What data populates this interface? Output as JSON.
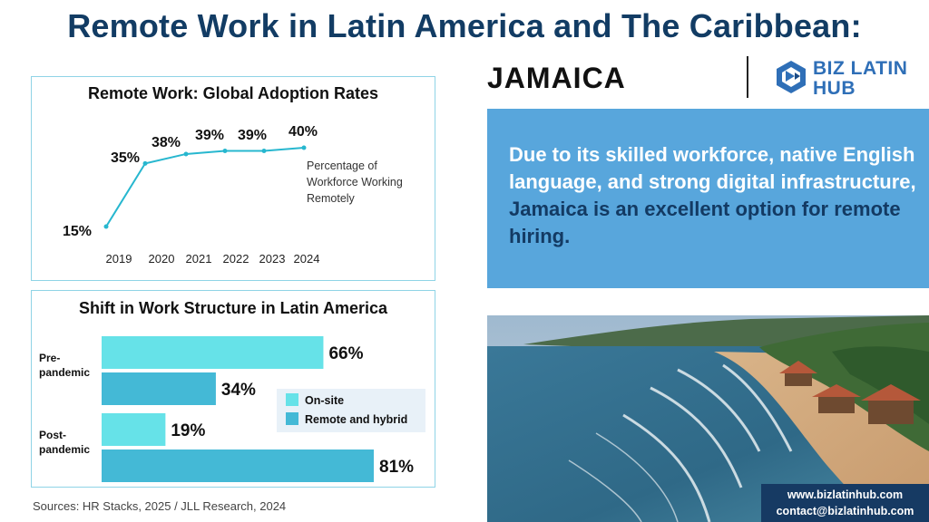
{
  "header": {
    "title": "Remote Work in Latin America and The Caribbean:",
    "country": "JAMAICA"
  },
  "logo": {
    "line1": "BIZ LATIN",
    "line2": "HUB"
  },
  "info": {
    "text_part1": "Due to its skilled workforce, native English language, and strong digital infrastructure, ",
    "highlight": "Jamaica is an excellent option for remote hiring."
  },
  "contact": {
    "website": "www.bizlatinhub.com",
    "email": "contact@bizlatinhub.com"
  },
  "sources": "Sources: HR Stacks, 2025 /  JLL Research, 2024",
  "colors": {
    "title": "#123c64",
    "line": "#27b7cf",
    "onsite": "#66e2e8",
    "remote": "#44b9d6",
    "info_bg": "#58a6dc",
    "contact_bg": "#163a63"
  },
  "chart_data": [
    {
      "type": "line",
      "title": "Remote Work: Global Adoption Rates",
      "x": [
        "2019",
        "2020",
        "2021",
        "2022",
        "2023",
        "2024"
      ],
      "series": [
        {
          "name": "",
          "values": [
            15,
            35,
            38,
            39,
            39,
            40
          ],
          "labels": [
            "15%",
            "35%",
            "38%",
            "39%",
            "39%",
            "40%"
          ]
        }
      ],
      "annotation": [
        "Percentage of",
        "Workforce Working",
        "Remotely"
      ],
      "ylim": [
        0,
        45
      ],
      "grid": false
    },
    {
      "type": "bar",
      "orientation": "horizontal",
      "title": "Shift in Work Structure in Latin America",
      "categories": [
        [
          "Pre-",
          "pandemic"
        ],
        [
          "Post-",
          "pandemic"
        ]
      ],
      "series": [
        {
          "name": "On-site",
          "values": [
            66,
            19
          ],
          "labels": [
            "66%",
            "19%"
          ]
        },
        {
          "name": "Remote and hybrid",
          "values": [
            34,
            81
          ],
          "labels": [
            "34%",
            "81%"
          ]
        }
      ],
      "xlim": [
        0,
        100
      ],
      "legend": "right"
    }
  ]
}
